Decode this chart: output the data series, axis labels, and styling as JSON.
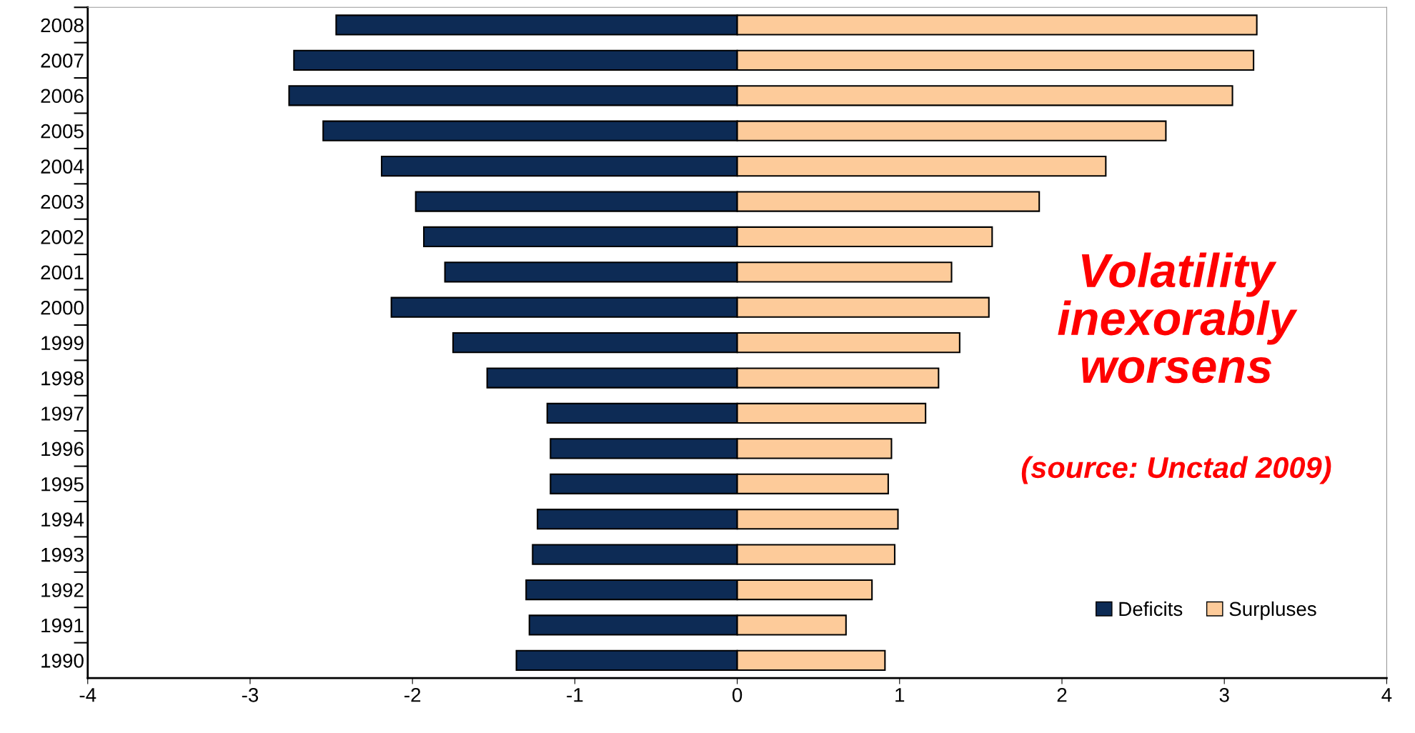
{
  "chart_data": {
    "type": "bar",
    "orientation": "horizontal",
    "stacked": true,
    "categories": [
      "2008",
      "2007",
      "2006",
      "2005",
      "2004",
      "2003",
      "2002",
      "2001",
      "2000",
      "1999",
      "1998",
      "1997",
      "1996",
      "1995",
      "1994",
      "1993",
      "1992",
      "1991",
      "1990"
    ],
    "series": [
      {
        "name": "Deficits",
        "color": "#0d2b55",
        "values": [
          -2.47,
          -2.73,
          -2.76,
          -2.55,
          -2.19,
          -1.98,
          -1.93,
          -1.8,
          -2.13,
          -1.75,
          -1.54,
          -1.17,
          -1.15,
          -1.15,
          -1.23,
          -1.26,
          -1.3,
          -1.28,
          -1.36
        ]
      },
      {
        "name": "Surpluses",
        "color": "#fdcb9a",
        "values": [
          3.2,
          3.18,
          3.05,
          2.64,
          2.27,
          1.86,
          1.57,
          1.32,
          1.55,
          1.37,
          1.24,
          1.16,
          0.95,
          0.93,
          0.99,
          0.97,
          0.83,
          0.67,
          0.91
        ]
      }
    ],
    "xlim": [
      -4,
      4
    ],
    "xticks": [
      -4,
      -3,
      -2,
      -1,
      0,
      1,
      2,
      3,
      4
    ],
    "legend": "bottom right",
    "grid": false,
    "annotations": [
      "Volatility\ninexorably\nworsens",
      "(source: Unctad 2009)"
    ]
  }
}
